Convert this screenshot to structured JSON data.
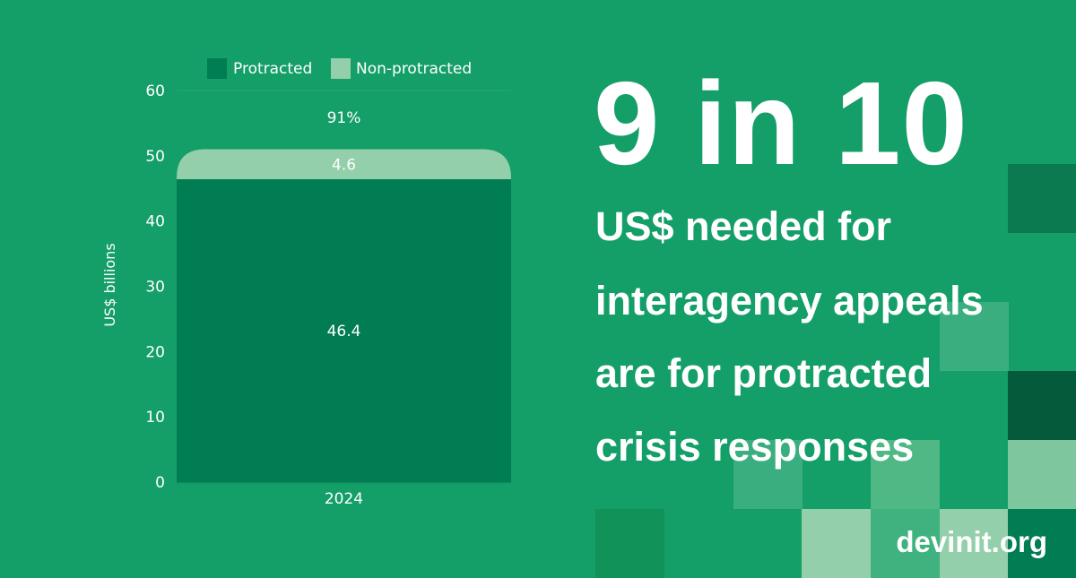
{
  "chart_data": {
    "type": "bar",
    "stacked": true,
    "categories": [
      "2024"
    ],
    "series": [
      {
        "name": "Protracted",
        "values": [
          46.4
        ],
        "color": "#007d52"
      },
      {
        "name": "Non-protracted",
        "values": [
          4.6
        ],
        "color": "#92cfaa"
      }
    ],
    "total_label": "91%",
    "ylabel": "US$ billions",
    "xlabel": "",
    "ylim": [
      0,
      60
    ],
    "yticks": [
      0,
      10,
      20,
      30,
      40,
      50,
      60
    ],
    "grid": false,
    "legend": "top"
  },
  "headline": {
    "big": "9 in 10",
    "lines": [
      "US$ needed for",
      "interagency appeals",
      "are for protracted",
      "crisis responses"
    ]
  },
  "brand": "devinit.org",
  "colors": {
    "background": "#149e68",
    "protracted": "#007d52",
    "non_protracted": "#92cfaa",
    "text": "#ffffff"
  }
}
